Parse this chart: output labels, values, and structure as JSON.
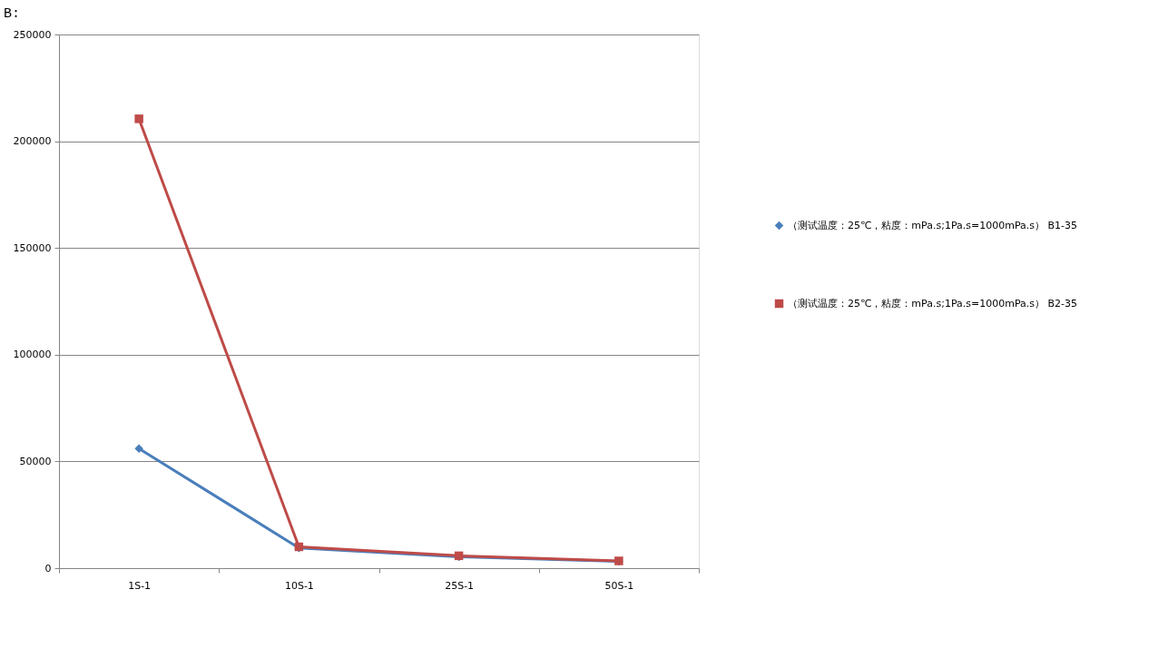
{
  "chart_data": {
    "type": "line",
    "title": "B:",
    "categories": [
      "1S-1",
      "10S-1",
      "25S-1",
      "50S-1"
    ],
    "series": [
      {
        "name": "（测试温度：25℃，粘度：mPa.s;1Pa.s=1000mPa.s） B1-35",
        "color": "#4a7ebb",
        "marker": "diamond",
        "values": [
          56000,
          9500,
          5300,
          3200
        ]
      },
      {
        "name": "（测试温度：25℃，粘度：mPa.s;1Pa.s=1000mPa.s） B2-35",
        "color": "#be4b48",
        "marker": "square",
        "values": [
          210500,
          10000,
          5800,
          3400
        ]
      }
    ],
    "ylim": [
      0,
      250000
    ],
    "yticks": [
      0,
      50000,
      100000,
      150000,
      200000,
      250000
    ],
    "grid": "y",
    "legend": "right",
    "line_style": "solid"
  }
}
